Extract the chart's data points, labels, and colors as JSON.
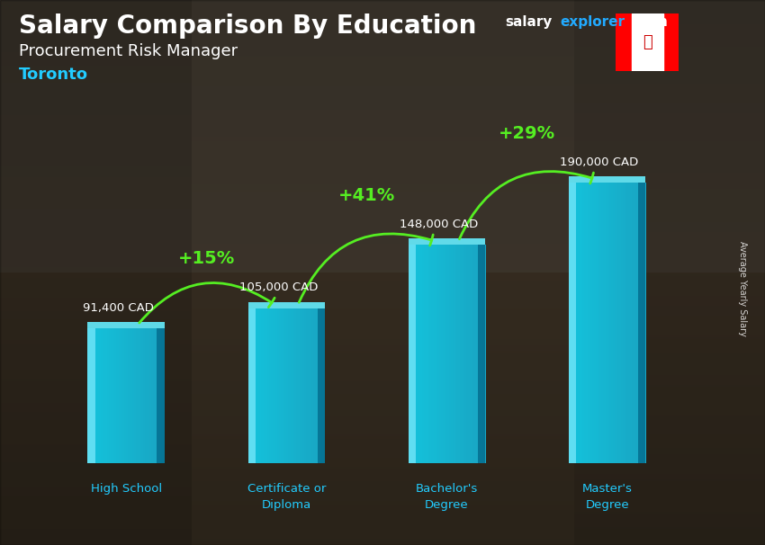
{
  "title_main": "Salary Comparison By Education",
  "title_sub": "Procurement Risk Manager",
  "title_city": "Toronto",
  "categories": [
    "High School",
    "Certificate or\nDiploma",
    "Bachelor's\nDegree",
    "Master's\nDegree"
  ],
  "values": [
    91400,
    105000,
    148000,
    190000
  ],
  "value_labels": [
    "91,400 CAD",
    "105,000 CAD",
    "148,000 CAD",
    "190,000 CAD"
  ],
  "arrow_pcts": [
    {
      "pct": "+15%",
      "from": 0,
      "to": 1
    },
    {
      "pct": "+41%",
      "from": 1,
      "to": 2
    },
    {
      "pct": "+29%",
      "from": 2,
      "to": 3
    }
  ],
  "bar_color_main": "#1ac8e0",
  "bar_color_left": "#55e8ff",
  "bar_color_right": "#0899b0",
  "bar_color_top": "#33d8f0",
  "pct_color": "#55ee22",
  "title_color": "#ffffff",
  "subtitle_color": "#ffffff",
  "city_color": "#22ccff",
  "value_color": "#ffffff",
  "cat_label_color": "#22ccff",
  "ylabel": "Average Yearly Salary",
  "brand_salary_color": "#ffffff",
  "brand_explorer_color": "#22aaff",
  "brand_com_color": "#ffffff",
  "bar_positions": [
    0,
    1,
    2,
    3
  ],
  "bar_width": 0.48,
  "ylim_max": 240000,
  "bg_color": "#3a3020"
}
